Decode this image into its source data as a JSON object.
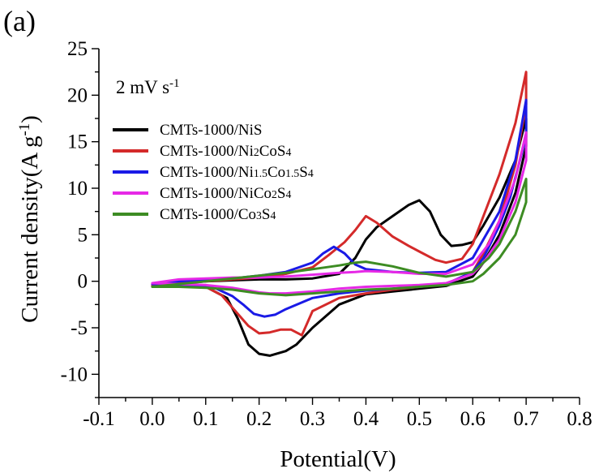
{
  "panel_label": "(a)",
  "chart_data": {
    "type": "line",
    "title": "",
    "xlabel": "Potential(V)",
    "ylabel": "Current density(A g^-1)",
    "xlim": [
      -0.1,
      0.8
    ],
    "ylim": [
      -12.5,
      25
    ],
    "xticks": [
      -0.1,
      0.0,
      0.1,
      0.2,
      0.3,
      0.4,
      0.5,
      0.6,
      0.7,
      0.8
    ],
    "xtick_labels": [
      "-0.1",
      "0.0",
      "0.1",
      "0.2",
      "0.3",
      "0.4",
      "0.5",
      "0.6",
      "0.7",
      "0.8"
    ],
    "yticks": [
      -10,
      -5,
      0,
      5,
      10,
      15,
      20,
      25
    ],
    "ytick_labels": [
      "-10",
      "-5",
      "0",
      "5",
      "10",
      "15",
      "20",
      "25"
    ],
    "annotation": "2 mV s^-1",
    "legend_position": "upper-left",
    "grid": false,
    "series": [
      {
        "name": "CMTs-1000/NiS",
        "color": "#000000",
        "x": [
          0.0,
          0.05,
          0.1,
          0.15,
          0.2,
          0.25,
          0.3,
          0.35,
          0.38,
          0.4,
          0.42,
          0.45,
          0.48,
          0.5,
          0.52,
          0.54,
          0.56,
          0.58,
          0.6,
          0.62,
          0.65,
          0.68,
          0.7,
          0.7,
          0.68,
          0.65,
          0.62,
          0.6,
          0.55,
          0.5,
          0.45,
          0.4,
          0.35,
          0.3,
          0.27,
          0.25,
          0.22,
          0.2,
          0.18,
          0.16,
          0.14,
          0.1,
          0.05,
          0.0
        ],
        "y": [
          -0.5,
          -0.2,
          0.0,
          0.1,
          0.2,
          0.2,
          0.3,
          0.8,
          2.5,
          4.5,
          5.8,
          7.0,
          8.2,
          8.7,
          7.5,
          5.0,
          3.8,
          3.9,
          4.2,
          6.0,
          9.0,
          13.0,
          17.5,
          14.5,
          9.5,
          5.0,
          2.0,
          0.5,
          -0.5,
          -0.8,
          -1.1,
          -1.4,
          -2.5,
          -5.0,
          -6.8,
          -7.5,
          -8.0,
          -7.8,
          -6.8,
          -4.0,
          -1.8,
          -0.6,
          -0.5,
          -0.5
        ]
      },
      {
        "name": "CMTs-1000/Ni2CoS4",
        "color": "#d42a2a",
        "x": [
          0.0,
          0.05,
          0.1,
          0.15,
          0.2,
          0.25,
          0.3,
          0.33,
          0.36,
          0.38,
          0.4,
          0.42,
          0.45,
          0.48,
          0.5,
          0.53,
          0.55,
          0.58,
          0.6,
          0.62,
          0.65,
          0.68,
          0.7,
          0.7,
          0.68,
          0.65,
          0.62,
          0.6,
          0.55,
          0.5,
          0.45,
          0.4,
          0.35,
          0.3,
          0.28,
          0.26,
          0.24,
          0.22,
          0.2,
          0.18,
          0.16,
          0.13,
          0.1,
          0.05,
          0.0
        ],
        "y": [
          -0.5,
          -0.2,
          0.0,
          0.2,
          0.4,
          0.8,
          1.5,
          2.8,
          4.2,
          5.5,
          7.0,
          6.3,
          4.8,
          3.8,
          3.2,
          2.3,
          2.0,
          2.4,
          4.0,
          7.0,
          11.5,
          17.0,
          22.5,
          19.0,
          12.5,
          6.5,
          3.0,
          1.0,
          -0.3,
          -0.6,
          -0.9,
          -1.3,
          -1.8,
          -3.2,
          -5.8,
          -5.2,
          -5.2,
          -5.5,
          -5.6,
          -4.8,
          -3.5,
          -1.5,
          -0.6,
          -0.5,
          -0.5
        ]
      },
      {
        "name": "CMTs-1000/Ni1.5Co1.5S4",
        "color": "#1a1ae6",
        "x": [
          0.0,
          0.05,
          0.1,
          0.15,
          0.2,
          0.25,
          0.3,
          0.32,
          0.34,
          0.36,
          0.38,
          0.4,
          0.45,
          0.5,
          0.55,
          0.6,
          0.65,
          0.68,
          0.7,
          0.7,
          0.67,
          0.65,
          0.62,
          0.6,
          0.55,
          0.5,
          0.45,
          0.4,
          0.35,
          0.3,
          0.25,
          0.23,
          0.21,
          0.19,
          0.17,
          0.15,
          0.12,
          0.1,
          0.05,
          0.0
        ],
        "y": [
          -0.3,
          0.0,
          0.2,
          0.3,
          0.6,
          1.0,
          2.0,
          3.0,
          3.7,
          3.0,
          1.8,
          1.3,
          1.0,
          0.9,
          1.0,
          2.5,
          7.5,
          13.0,
          19.5,
          15.5,
          9.0,
          6.0,
          2.5,
          1.0,
          -0.3,
          -0.6,
          -0.8,
          -1.0,
          -1.3,
          -1.8,
          -3.0,
          -3.6,
          -3.8,
          -3.5,
          -2.5,
          -1.6,
          -0.8,
          -0.5,
          -0.4,
          -0.3
        ]
      },
      {
        "name": "CMTs-1000/NiCo2S4",
        "color": "#e629e6",
        "x": [
          0.0,
          0.05,
          0.1,
          0.15,
          0.2,
          0.25,
          0.3,
          0.35,
          0.38,
          0.4,
          0.45,
          0.5,
          0.55,
          0.6,
          0.63,
          0.65,
          0.68,
          0.7,
          0.7,
          0.68,
          0.65,
          0.62,
          0.6,
          0.55,
          0.5,
          0.45,
          0.4,
          0.35,
          0.3,
          0.25,
          0.22,
          0.2,
          0.18,
          0.15,
          0.1,
          0.05,
          0.0
        ],
        "y": [
          -0.2,
          0.2,
          0.3,
          0.4,
          0.4,
          0.5,
          0.7,
          0.9,
          1.0,
          1.1,
          1.0,
          0.8,
          0.8,
          1.8,
          4.0,
          6.5,
          11.0,
          16.0,
          13.0,
          8.5,
          4.5,
          2.0,
          0.8,
          -0.2,
          -0.4,
          -0.5,
          -0.6,
          -0.8,
          -1.1,
          -1.3,
          -1.3,
          -1.2,
          -1.0,
          -0.7,
          -0.4,
          -0.3,
          -0.2
        ]
      },
      {
        "name": "CMTs-1000/Co3S4",
        "color": "#3d8c23",
        "x": [
          0.0,
          0.05,
          0.1,
          0.15,
          0.2,
          0.25,
          0.3,
          0.35,
          0.38,
          0.4,
          0.45,
          0.5,
          0.55,
          0.6,
          0.63,
          0.65,
          0.68,
          0.7,
          0.7,
          0.68,
          0.65,
          0.62,
          0.6,
          0.55,
          0.5,
          0.45,
          0.4,
          0.35,
          0.3,
          0.25,
          0.2,
          0.15,
          0.1,
          0.05,
          0.0
        ],
        "y": [
          -0.6,
          -0.3,
          0.0,
          0.3,
          0.6,
          0.9,
          1.3,
          1.7,
          2.0,
          2.1,
          1.6,
          0.9,
          0.5,
          1.0,
          2.5,
          4.0,
          7.5,
          11.0,
          8.5,
          5.0,
          2.5,
          0.8,
          0.0,
          -0.4,
          -0.6,
          -0.8,
          -0.9,
          -1.1,
          -1.3,
          -1.5,
          -1.3,
          -0.9,
          -0.7,
          -0.6,
          -0.6
        ]
      }
    ]
  }
}
